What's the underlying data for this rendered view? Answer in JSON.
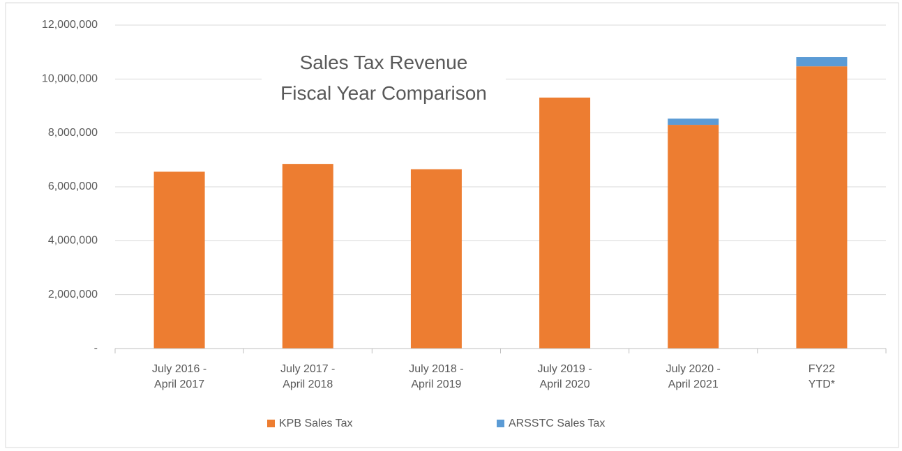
{
  "chart_data": {
    "type": "stacked_bar",
    "title": "Sales Tax Revenue\nFiscal Year Comparison",
    "categories": [
      "July 2016 -\nApril 2017",
      "July 2017 -\nApril 2018",
      "July 2018 -\nApril 2019",
      "July 2019 -\nApril 2020",
      "July 2020 -\nApril 2021",
      "FY22\nYTD*"
    ],
    "series": [
      {
        "name": "KPB Sales Tax",
        "color": "#ED7D31",
        "values": [
          6560000,
          6850000,
          6650000,
          9310000,
          8300000,
          10470000
        ]
      },
      {
        "name": "ARSSTC Sales Tax",
        "color": "#5B9BD5",
        "values": [
          0,
          0,
          0,
          0,
          230000,
          340000
        ]
      }
    ],
    "ylim": [
      0,
      12000000
    ],
    "yticks": [
      {
        "value": 0,
        "label": "-"
      },
      {
        "value": 2000000,
        "label": "2,000,000"
      },
      {
        "value": 4000000,
        "label": "4,000,000"
      },
      {
        "value": 6000000,
        "label": "6,000,000"
      },
      {
        "value": 8000000,
        "label": "8,000,000"
      },
      {
        "value": 10000000,
        "label": "10,000,000"
      },
      {
        "value": 12000000,
        "label": "12,000,000"
      }
    ],
    "grid": true,
    "legend": "bottom"
  }
}
